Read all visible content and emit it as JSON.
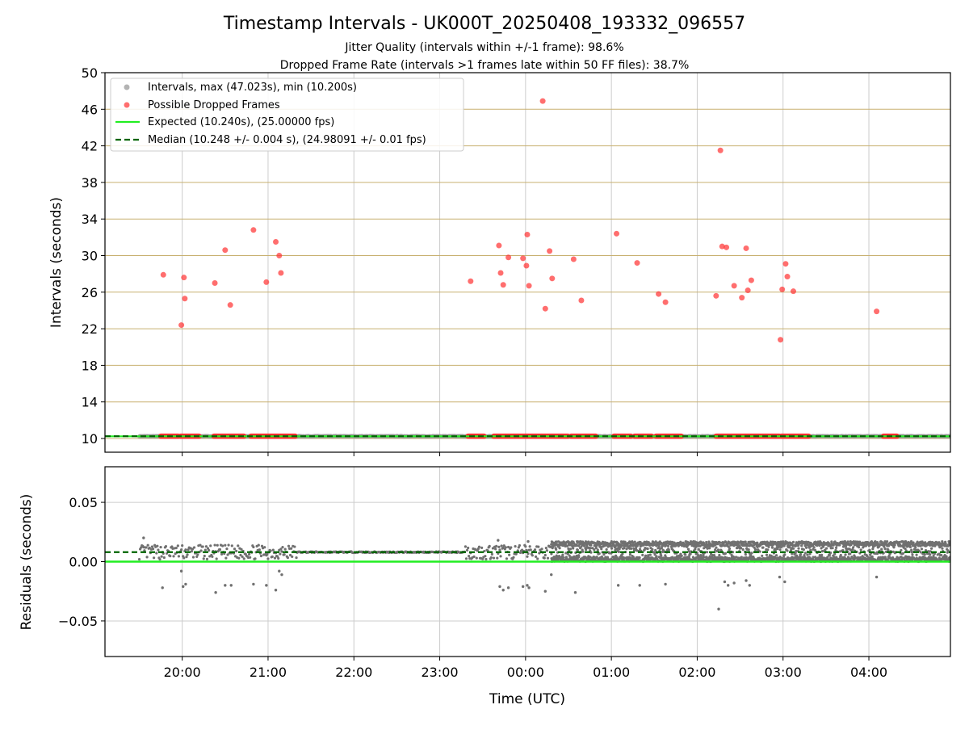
{
  "title": "Timestamp Intervals - UK000T_20250408_193332_096557",
  "subtitle_1": "Jitter Quality (intervals within +/-1 frame): 98.6%",
  "subtitle_2": "Dropped Frame Rate (intervals >1 frames late within 50 FF files): 38.7%",
  "colors": {
    "intervals": "#999999",
    "dropped": "#ff3030",
    "expected": "#22ee22",
    "median": "#006400",
    "hgrid_top": "#c8b070",
    "grid": "#cccccc",
    "residuals": "#707070"
  },
  "chart_data": [
    {
      "type": "scatter",
      "ylabel": "Intervals (seconds)",
      "ylim": [
        8.5,
        50
      ],
      "yticks": [
        10,
        14,
        18,
        22,
        26,
        30,
        34,
        38,
        42,
        46,
        50
      ],
      "xlim_hours": [
        19.1,
        28.95
      ],
      "xticks_hours": [
        20,
        21,
        22,
        23,
        24,
        25,
        26,
        27,
        28
      ],
      "xtick_labels": [
        "20:00",
        "21:00",
        "22:00",
        "23:00",
        "00:00",
        "01:00",
        "02:00",
        "03:00",
        "04:00"
      ],
      "grid": true,
      "legend_position": "top-left",
      "legend": [
        {
          "key": "intervals",
          "label": "Intervals, max (47.023s), min (10.200s)"
        },
        {
          "key": "dropped",
          "label": "Possible Dropped Frames"
        },
        {
          "key": "expected",
          "label": "Expected (10.240s), (25.00000 fps)"
        },
        {
          "key": "median",
          "label": "Median (10.248 +/- 0.004 s), (24.98091 +/- 0.01 fps)"
        }
      ],
      "expected_value": 10.24,
      "median_value": 10.248,
      "dropped_points": [
        [
          19.78,
          27.9
        ],
        [
          19.99,
          22.4
        ],
        [
          20.02,
          27.6
        ],
        [
          20.03,
          25.3
        ],
        [
          20.38,
          27.0
        ],
        [
          20.5,
          30.6
        ],
        [
          20.56,
          24.6
        ],
        [
          20.83,
          32.8
        ],
        [
          20.98,
          27.1
        ],
        [
          21.09,
          31.5
        ],
        [
          21.13,
          30.0
        ],
        [
          21.15,
          28.1
        ],
        [
          23.36,
          27.2
        ],
        [
          23.69,
          31.1
        ],
        [
          23.71,
          28.1
        ],
        [
          23.74,
          26.8
        ],
        [
          23.8,
          29.8
        ],
        [
          23.97,
          29.7
        ],
        [
          24.02,
          32.3
        ],
        [
          24.01,
          28.9
        ],
        [
          24.04,
          26.7
        ],
        [
          24.2,
          46.9
        ],
        [
          24.23,
          24.2
        ],
        [
          24.28,
          30.5
        ],
        [
          24.31,
          27.5
        ],
        [
          24.56,
          29.6
        ],
        [
          24.65,
          25.1
        ],
        [
          25.06,
          32.4
        ],
        [
          25.3,
          29.2
        ],
        [
          25.55,
          25.8
        ],
        [
          25.63,
          24.9
        ],
        [
          26.22,
          25.6
        ],
        [
          26.27,
          41.5
        ],
        [
          26.29,
          31.0
        ],
        [
          26.34,
          30.9
        ],
        [
          26.43,
          26.7
        ],
        [
          26.52,
          25.4
        ],
        [
          26.57,
          30.8
        ],
        [
          26.59,
          26.2
        ],
        [
          26.63,
          27.3
        ],
        [
          26.97,
          20.8
        ],
        [
          26.99,
          26.3
        ],
        [
          27.03,
          29.1
        ],
        [
          27.05,
          27.7
        ],
        [
          27.12,
          26.1
        ],
        [
          28.09,
          23.9
        ]
      ],
      "dropped_bands_hours": [
        [
          19.75,
          19.96
        ],
        [
          19.98,
          20.2
        ],
        [
          20.37,
          20.72
        ],
        [
          20.8,
          21.32
        ],
        [
          23.33,
          23.52
        ],
        [
          23.63,
          24.5
        ],
        [
          24.53,
          24.82
        ],
        [
          25.03,
          25.23
        ],
        [
          25.27,
          25.47
        ],
        [
          25.52,
          25.82
        ],
        [
          26.22,
          26.96
        ],
        [
          26.98,
          27.3
        ],
        [
          28.17,
          28.33
        ]
      ],
      "intervals_range_hours": [
        19.5,
        28.95
      ]
    },
    {
      "type": "scatter",
      "xlabel": "Time (UTC)",
      "ylabel": "Residuals (seconds)",
      "ylim": [
        -0.08,
        0.08
      ],
      "yticks": [
        0.05,
        0.0,
        -0.05
      ],
      "ytick_labels": [
        "0.05",
        "0.00",
        "−0.05"
      ],
      "grid": true,
      "expected_residual": 0.0,
      "median_residual": 0.008,
      "outlier_points": [
        [
          19.77,
          -0.022
        ],
        [
          19.99,
          -0.008
        ],
        [
          20.01,
          -0.021
        ],
        [
          20.04,
          -0.019
        ],
        [
          20.39,
          -0.026
        ],
        [
          20.5,
          -0.02
        ],
        [
          20.57,
          -0.02
        ],
        [
          20.83,
          -0.019
        ],
        [
          20.98,
          -0.02
        ],
        [
          21.09,
          -0.024
        ],
        [
          21.13,
          -0.008
        ],
        [
          21.16,
          -0.011
        ],
        [
          23.7,
          -0.021
        ],
        [
          23.74,
          -0.024
        ],
        [
          23.8,
          -0.022
        ],
        [
          23.97,
          -0.021
        ],
        [
          24.02,
          -0.02
        ],
        [
          24.04,
          -0.022
        ],
        [
          24.23,
          -0.025
        ],
        [
          24.3,
          -0.011
        ],
        [
          24.58,
          -0.026
        ],
        [
          25.08,
          -0.02
        ],
        [
          25.33,
          -0.02
        ],
        [
          25.63,
          -0.019
        ],
        [
          26.25,
          -0.04
        ],
        [
          26.32,
          -0.017
        ],
        [
          26.36,
          -0.02
        ],
        [
          26.43,
          -0.018
        ],
        [
          26.57,
          -0.016
        ],
        [
          26.61,
          -0.02
        ],
        [
          26.96,
          -0.013
        ],
        [
          27.02,
          -0.017
        ],
        [
          28.09,
          -0.013
        ],
        [
          19.55,
          0.02
        ],
        [
          23.68,
          0.018
        ],
        [
          24.03,
          0.017
        ]
      ],
      "sparse_range_hours": [
        19.5,
        24.3
      ],
      "dense_range_hours": [
        24.3,
        28.95
      ],
      "sparse_band": [
        0.002,
        0.014
      ],
      "dense_band": [
        0.0,
        0.017
      ]
    }
  ]
}
